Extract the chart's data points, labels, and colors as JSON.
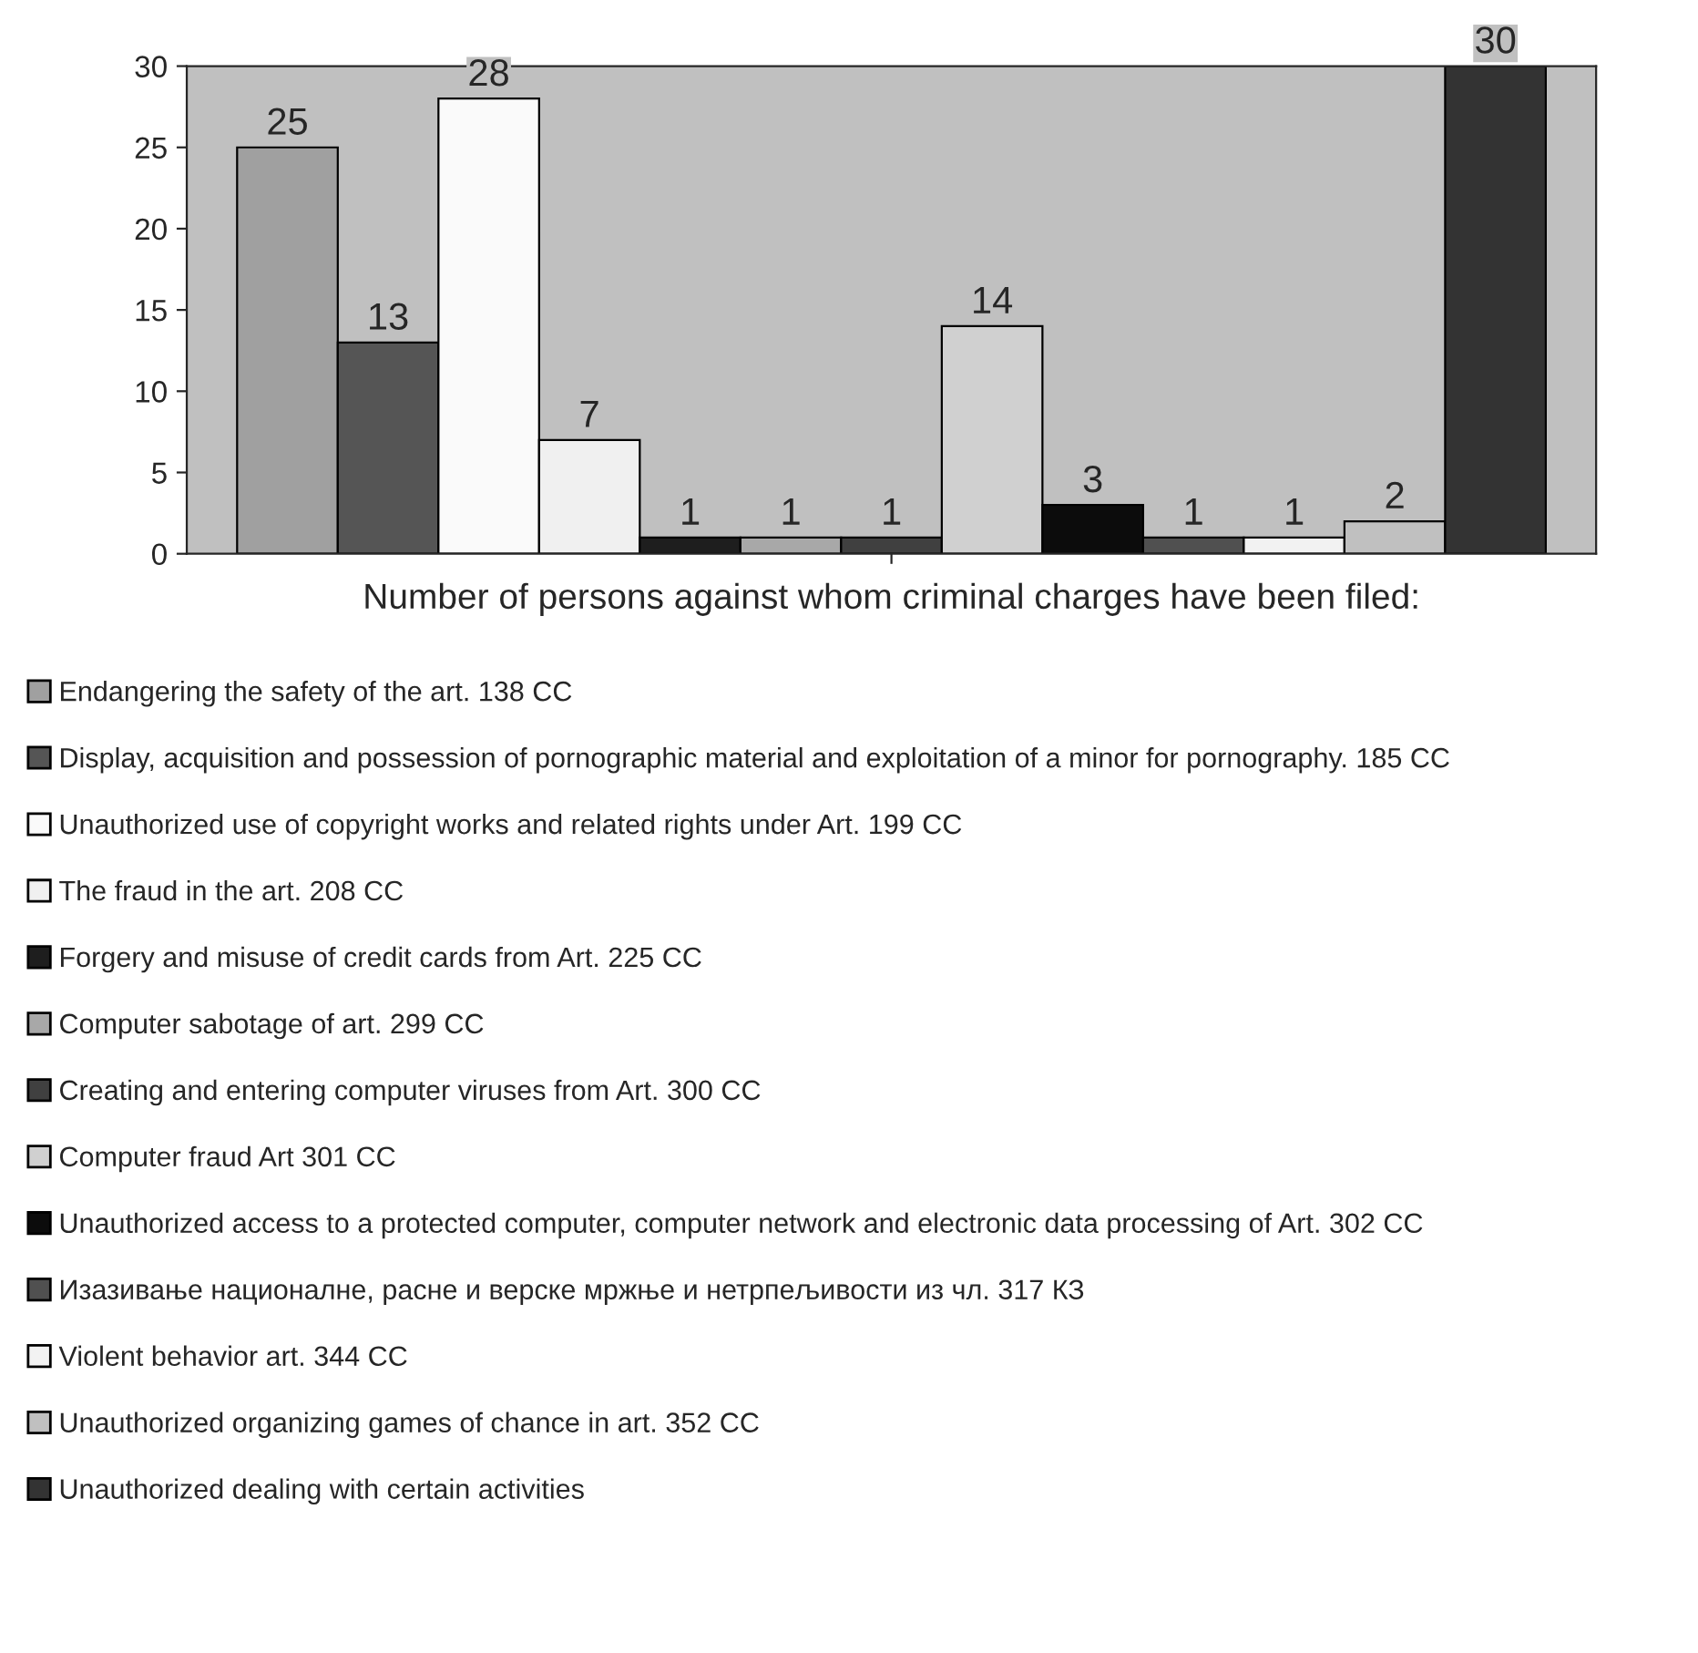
{
  "chart_data": {
    "type": "bar",
    "xlabel": "Number of persons against whom criminal charges have been filed:",
    "categories": [
      null
    ],
    "ylim": [
      0,
      30
    ],
    "yticks": [
      0,
      5,
      10,
      15,
      20,
      25,
      30
    ],
    "grid": false,
    "legend": "bottom",
    "data_labels": true,
    "series": [
      {
        "name": "Endangering the safety of the art. 138 CC",
        "color": "#a0a0a0",
        "values": [
          25
        ]
      },
      {
        "name": "Display, acquisition and possession of pornographic material and exploitation of a minor for pornography. 185 CC",
        "color": "#555555",
        "values": [
          13
        ]
      },
      {
        "name": "Unauthorized use of copyright works and related rights under Art. 199 CC",
        "color": "#fafafa",
        "values": [
          28
        ]
      },
      {
        "name": "The fraud in the art. 208 CC",
        "color": "#f0f0f0",
        "values": [
          7
        ]
      },
      {
        "name": "Forgery and misuse of credit cards from Art. 225 CC",
        "color": "#1e1e1e",
        "values": [
          1
        ]
      },
      {
        "name": "Computer sabotage of art. 299 CC",
        "color": "#a8a8a8",
        "values": [
          1
        ]
      },
      {
        "name": "Creating and entering computer viruses from Art. 300 CC",
        "color": "#404040",
        "values": [
          1
        ]
      },
      {
        "name": "Computer fraud Art 301 CC",
        "color": "#d0d0d0",
        "values": [
          14
        ]
      },
      {
        "name": "Unauthorized access to a protected computer, computer network and electronic data processing of Art. 302 CC",
        "color": "#0c0c0c",
        "values": [
          3
        ]
      },
      {
        "name": "Изазивање националне, расне и верске мржње и нетрпељивости из чл. 317 КЗ",
        "color": "#505050",
        "values": [
          1
        ]
      },
      {
        "name": "Violent behavior art. 344 CC",
        "color": "#f2f2f2",
        "values": [
          1
        ]
      },
      {
        "name": "Unauthorized organizing games of chance in art. 352 CC",
        "color": "#c0c0c0",
        "values": [
          2
        ]
      },
      {
        "name": "Unauthorized dealing with certain activities",
        "color": "#333333",
        "values": [
          30
        ]
      }
    ]
  }
}
